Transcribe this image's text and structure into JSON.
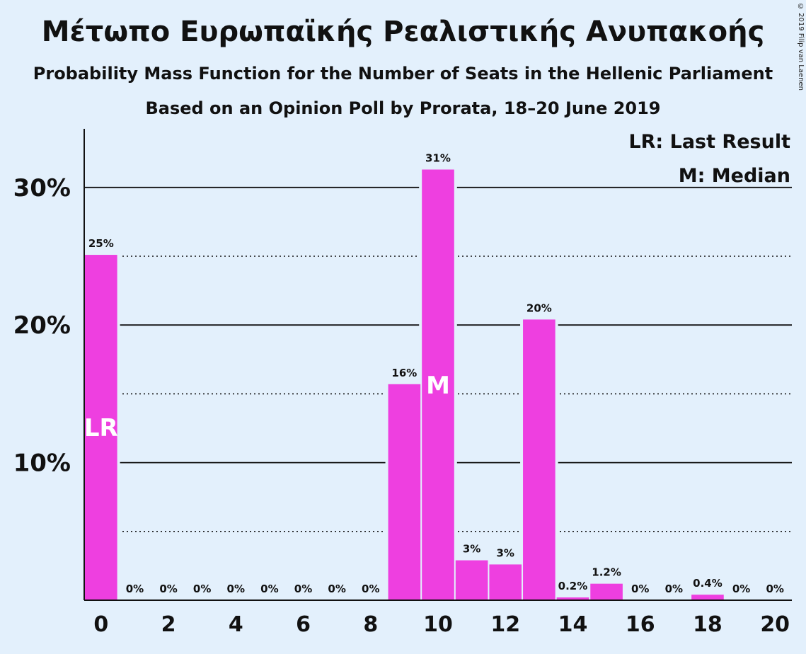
{
  "title": "Μέτωπο Ευρωπαϊκής Ρεαλιστικής Ανυπακοής",
  "subtitle": "Probability Mass Function for the Number of Seats in the Hellenic Parliament",
  "subtitle2": "Based on an Opinion Poll by Prorata, 18–20 June 2019",
  "copyright": "© 2019 Filip van Laenen",
  "colors": {
    "bar": "#ee3fe0",
    "background": "#e3f0fc"
  },
  "chart_data": {
    "type": "bar",
    "x": [
      0,
      1,
      2,
      3,
      4,
      5,
      6,
      7,
      8,
      9,
      10,
      11,
      12,
      13,
      14,
      15,
      16,
      17,
      18,
      19,
      20
    ],
    "values": [
      25.1,
      0,
      0,
      0,
      0,
      0,
      0,
      0,
      0,
      15.7,
      31.3,
      2.9,
      2.6,
      20.4,
      0.2,
      1.2,
      0,
      0,
      0.4,
      0,
      0
    ],
    "data_labels": [
      "25%",
      "0%",
      "0%",
      "0%",
      "0%",
      "0%",
      "0%",
      "0%",
      "0%",
      "16%",
      "31%",
      "3%",
      "3%",
      "20%",
      "0.2%",
      "1.2%",
      "0%",
      "0%",
      "0.4%",
      "0%",
      "0%"
    ],
    "x_ticks": [
      "0",
      "2",
      "4",
      "6",
      "8",
      "10",
      "12",
      "14",
      "16",
      "18",
      "20"
    ],
    "y_ticks": [
      "10%",
      "20%",
      "30%"
    ],
    "ylim": [
      0,
      34
    ],
    "gridlines": {
      "major": [
        10,
        20,
        30
      ],
      "minor": [
        5,
        15,
        25
      ]
    },
    "markers": [
      {
        "x": 0,
        "label": "LR"
      },
      {
        "x": 10,
        "label": "M"
      }
    ],
    "legend": [
      "LR: Last Result",
      "M: Median"
    ],
    "legend_position": "top-right"
  }
}
